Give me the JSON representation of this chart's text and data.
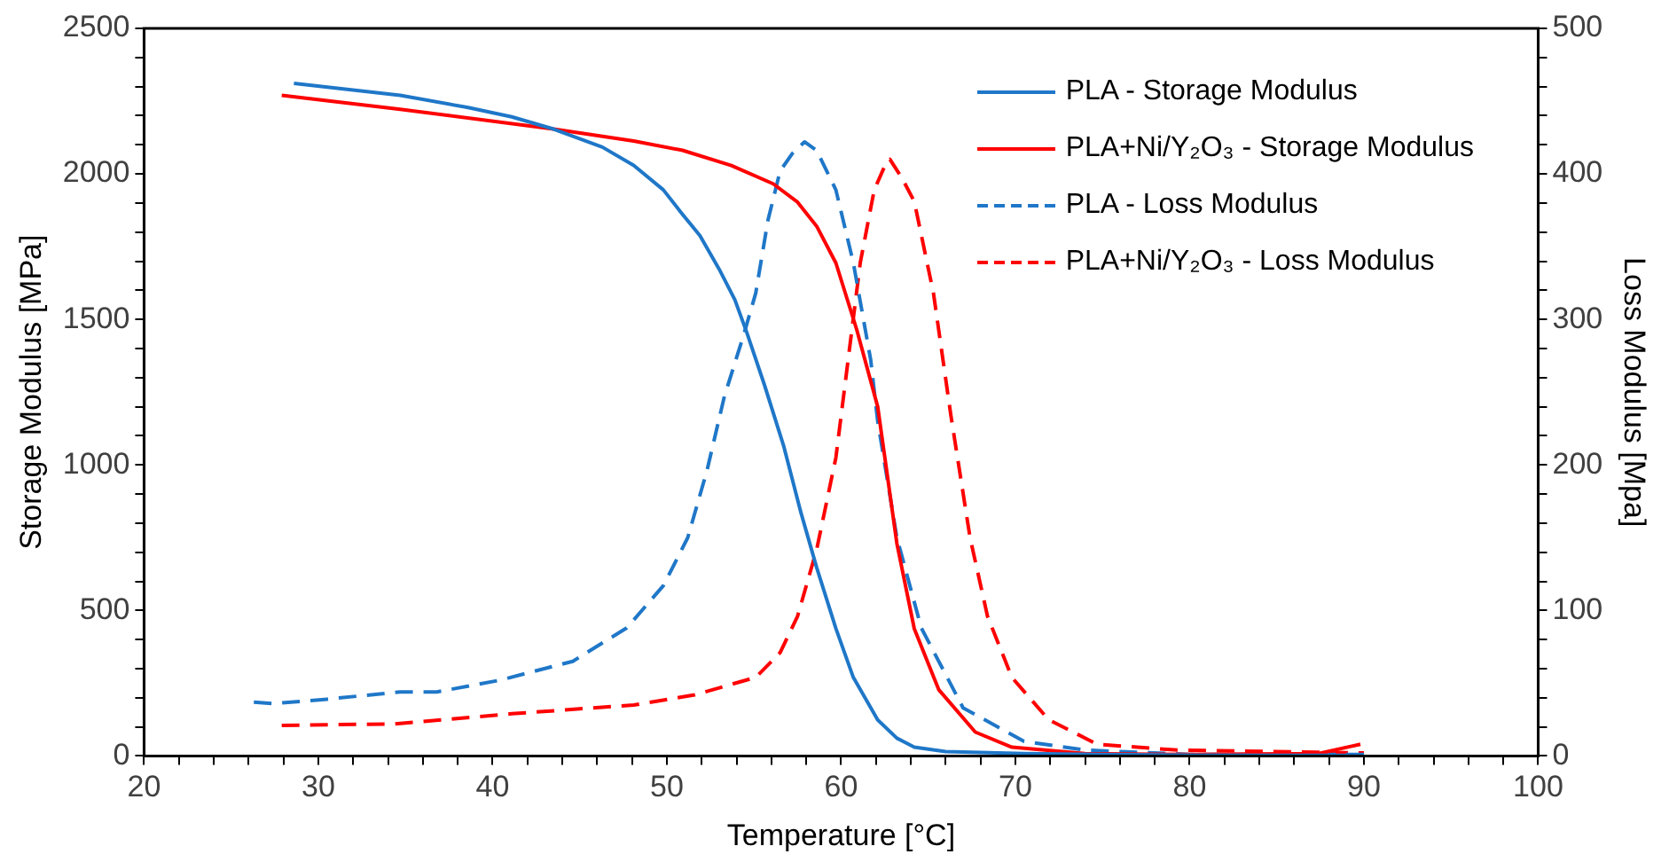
{
  "chart_data": {
    "type": "line",
    "xlabel": "Temperature [°C]",
    "ylabel": "Storage Modulus [MPa]",
    "y2label": "Loss Modulus [Mpa]",
    "xlim": [
      20,
      100
    ],
    "ylim": [
      0,
      2500
    ],
    "y2lim": [
      0,
      500
    ],
    "xticks": [
      20,
      {
        "value": 22,
        "label": null
      },
      {
        "value": 24,
        "label": null
      },
      {
        "value": 26,
        "label": null
      },
      {
        "value": 28,
        "label": null
      },
      30,
      {
        "value": 32,
        "label": null
      },
      {
        "value": 34,
        "label": null
      },
      {
        "value": 36,
        "label": null
      },
      {
        "value": 38,
        "label": null
      },
      40,
      {
        "value": 42,
        "label": null
      },
      {
        "value": 44,
        "label": null
      },
      {
        "value": 46,
        "label": null
      },
      {
        "value": 48,
        "label": null
      },
      50,
      {
        "value": 52,
        "label": null
      },
      {
        "value": 54,
        "label": null
      },
      {
        "value": 56,
        "label": null
      },
      {
        "value": 58,
        "label": null
      },
      60,
      {
        "value": 62,
        "label": null
      },
      {
        "value": 64,
        "label": null
      },
      {
        "value": 66,
        "label": null
      },
      {
        "value": 68,
        "label": null
      },
      70,
      {
        "value": 72,
        "label": null
      },
      {
        "value": 74,
        "label": null
      },
      {
        "value": 76,
        "label": null
      },
      {
        "value": 78,
        "label": null
      },
      80,
      {
        "value": 82,
        "label": null
      },
      {
        "value": 84,
        "label": null
      },
      {
        "value": 86,
        "label": null
      },
      {
        "value": 88,
        "label": null
      },
      90,
      {
        "value": 92,
        "label": null
      },
      {
        "value": 94,
        "label": null
      },
      {
        "value": 96,
        "label": null
      },
      {
        "value": 98,
        "label": null
      },
      100
    ],
    "yticks": [
      0,
      {
        "value": 100,
        "label": null
      },
      {
        "value": 200,
        "label": null
      },
      {
        "value": 300,
        "label": null
      },
      {
        "value": 400,
        "label": null
      },
      500,
      {
        "value": 600,
        "label": null
      },
      {
        "value": 700,
        "label": null
      },
      {
        "value": 800,
        "label": null
      },
      {
        "value": 900,
        "label": null
      },
      1000,
      {
        "value": 1100,
        "label": null
      },
      {
        "value": 1200,
        "label": null
      },
      {
        "value": 1300,
        "label": null
      },
      {
        "value": 1400,
        "label": null
      },
      1500,
      {
        "value": 1600,
        "label": null
      },
      {
        "value": 1700,
        "label": null
      },
      {
        "value": 1800,
        "label": null
      },
      {
        "value": 1900,
        "label": null
      },
      2000,
      {
        "value": 2100,
        "label": null
      },
      {
        "value": 2200,
        "label": null
      },
      {
        "value": 2300,
        "label": null
      },
      {
        "value": 2400,
        "label": null
      },
      2500
    ],
    "y2ticks": [
      0,
      {
        "value": 20,
        "label": null
      },
      {
        "value": 40,
        "label": null
      },
      {
        "value": 60,
        "label": null
      },
      {
        "value": 80,
        "label": null
      },
      100,
      {
        "value": 120,
        "label": null
      },
      {
        "value": 140,
        "label": null
      },
      {
        "value": 160,
        "label": null
      },
      {
        "value": 180,
        "label": null
      },
      200,
      {
        "value": 220,
        "label": null
      },
      {
        "value": 240,
        "label": null
      },
      {
        "value": 260,
        "label": null
      },
      {
        "value": 280,
        "label": null
      },
      300,
      {
        "value": 320,
        "label": null
      },
      {
        "value": 340,
        "label": null
      },
      {
        "value": 360,
        "label": null
      },
      {
        "value": 380,
        "label": null
      },
      400,
      {
        "value": 420,
        "label": null
      },
      {
        "value": 440,
        "label": null
      },
      {
        "value": 460,
        "label": null
      },
      {
        "value": 480,
        "label": null
      },
      500
    ],
    "grid": false,
    "legend": "top right",
    "marker": "none",
    "series": [
      {
        "name": "PLA - Storage Modulus",
        "color": "#1f77c8",
        "line_style": "solid",
        "x": [
          28.6,
          34.7,
          38.6,
          41.1,
          43.5,
          46.3,
          48.1,
          49.8,
          50.9,
          51.9,
          53.0,
          53.9,
          54.6,
          55.6,
          56.7,
          57.7,
          58.6,
          59.7,
          60.7,
          62.1,
          63.2,
          64.2,
          66,
          70.5,
          75,
          80,
          85,
          90
        ],
        "values": [
          2311,
          2270,
          2228,
          2196,
          2154,
          2092,
          2029,
          1945,
          1861,
          1788,
          1673,
          1568,
          1453,
          1275,
          1066,
          835,
          647,
          438,
          270,
          124,
          61,
          30,
          15,
          8,
          5,
          3,
          2,
          2
        ]
      },
      {
        "name": "PLA+Ni/Y₂O₃ - Storage Modulus",
        "color": "#ff0000",
        "line_style": "solid",
        "x": [
          27.9,
          34.7,
          43.5,
          48.1,
          50.9,
          53.7,
          56.1,
          57.5,
          58.6,
          59.7,
          60.9,
          62.1,
          63.2,
          64.2,
          65.6,
          67.7,
          69.8,
          74,
          80,
          87.4,
          89.8
        ],
        "values": [
          2270,
          2222,
          2154,
          2113,
          2081,
          2029,
          1966,
          1903,
          1820,
          1694,
          1464,
          1200,
          730,
          437,
          228,
          82,
          30,
          8,
          5,
          8,
          40
        ]
      },
      {
        "name": "PLA - Loss Modulus",
        "color": "#1f77c8",
        "line_style": "dashed",
        "axis": "y2",
        "x": [
          26.3,
          27.4,
          30.5,
          34.7,
          36.8,
          40.4,
          44.6,
          47.7,
          49.8,
          51.2,
          52.3,
          53.3,
          54.4,
          55.1,
          55.8,
          56.5,
          57.2,
          57.9,
          58.6,
          59.7,
          60.7,
          61.7,
          62.1,
          63.2,
          64.6,
          67,
          70.5,
          74,
          80,
          90
        ],
        "values": [
          37,
          36,
          39,
          44,
          44,
          52,
          65,
          88,
          117,
          150,
          196,
          247,
          289,
          318,
          368,
          402,
          414,
          422,
          416,
          389,
          339,
          272,
          230,
          150,
          88,
          33,
          10,
          4,
          1,
          1
        ]
      },
      {
        "name": "PLA+Ni/Y₂O₃ - Loss Modulus",
        "color": "#ff0000",
        "line_style": "dashed",
        "axis": "y2",
        "x": [
          27.9,
          34.4,
          41.1,
          48.1,
          51.6,
          55.1,
          56.5,
          57.5,
          58.6,
          59.7,
          60.4,
          61.1,
          61.9,
          62.6,
          62.8,
          63.5,
          64.2,
          65.3,
          66.3,
          67.4,
          68.4,
          69.8,
          71.9,
          74.7,
          79.3,
          90
        ],
        "values": [
          21,
          22,
          29,
          35,
          42,
          54,
          71,
          96,
          142,
          205,
          272,
          339,
          389,
          408,
          410,
          397,
          381,
          318,
          234,
          150,
          96,
          54,
          25,
          8,
          4,
          2
        ]
      }
    ]
  }
}
